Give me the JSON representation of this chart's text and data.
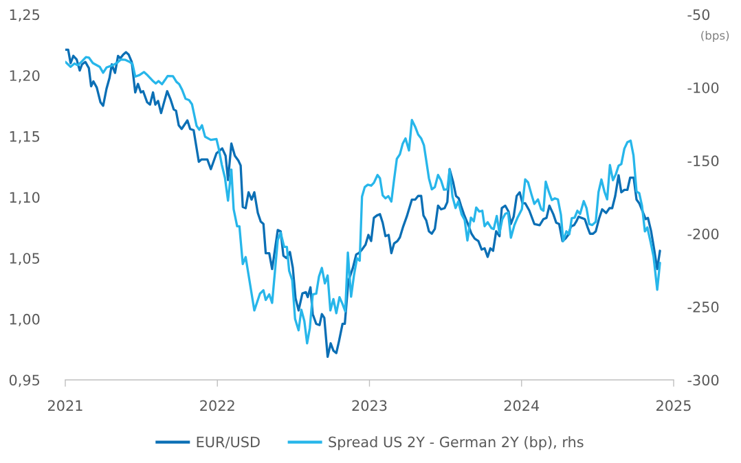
{
  "chart_data": {
    "type": "line",
    "xlim": [
      2021,
      2025
    ],
    "xticks": [
      2021,
      2022,
      2023,
      2024,
      2025
    ],
    "ylim": [
      0.95,
      1.25
    ],
    "yticks": [
      {
        "value": 0.95,
        "label": "0,95"
      },
      {
        "value": 1.0,
        "label": "1,00"
      },
      {
        "value": 1.05,
        "label": "1,05"
      },
      {
        "value": 1.1,
        "label": "1,10"
      },
      {
        "value": 1.15,
        "label": "1,15"
      },
      {
        "value": 1.2,
        "label": "1,20"
      },
      {
        "value": 1.25,
        "label": "1,25"
      }
    ],
    "y2lim": [
      -300,
      -50
    ],
    "y2ticks": [
      -300,
      -250,
      -200,
      -150,
      -100,
      -50
    ],
    "y2label": "(bps)",
    "legend": "bottom",
    "marker": "none",
    "line_style": "solid",
    "series": [
      {
        "name": "EUR/USD",
        "color": "#0b6fb5",
        "x": [
          2021.0,
          2021.019,
          2021.035,
          2021.053,
          2021.075,
          2021.095,
          2021.11,
          2021.132,
          2021.155,
          2021.17,
          2021.185,
          2021.207,
          2021.231,
          2021.249,
          2021.271,
          2021.291,
          2021.306,
          2021.327,
          2021.347,
          2021.362,
          2021.381,
          2021.399,
          2021.417,
          2021.437,
          2021.46,
          2021.478,
          2021.497,
          2021.512,
          2021.538,
          2021.557,
          2021.577,
          2021.592,
          2021.61,
          2021.63,
          2021.652,
          2021.67,
          2021.693,
          2021.713,
          2021.728,
          2021.746,
          2021.765,
          2021.803,
          2021.821,
          2021.844,
          2021.878,
          2021.896,
          2021.934,
          2021.957,
          2021.994,
          2022.032,
          2022.054,
          2022.07,
          2022.092,
          2022.115,
          2022.138,
          2022.153,
          2022.167,
          2022.186,
          2022.205,
          2022.225,
          2022.243,
          2022.266,
          2022.285,
          2022.303,
          2022.318,
          2022.341,
          2022.36,
          2022.397,
          2022.416,
          2022.434,
          2022.454,
          2022.477,
          2022.496,
          2022.514,
          2022.534,
          2022.559,
          2022.582,
          2022.594,
          2022.612,
          2022.627,
          2022.65,
          2022.672,
          2022.687,
          2022.703,
          2022.725,
          2022.745,
          2022.763,
          2022.782,
          2022.8,
          2022.823,
          2022.838,
          2022.861,
          2022.891,
          2022.913,
          2022.929,
          2022.951,
          2022.974,
          2022.993,
          2023.011,
          2023.029,
          2023.049,
          2023.069,
          2023.087,
          2023.105,
          2023.126,
          2023.144,
          2023.162,
          2023.184,
          2023.2,
          2023.222,
          2023.245,
          2023.279,
          2023.301,
          2023.32,
          2023.34,
          2023.355,
          2023.373,
          2023.391,
          2023.41,
          2023.43,
          2023.451,
          2023.471,
          2023.494,
          2023.512,
          2023.527,
          2023.551,
          2023.569,
          2023.587,
          2023.602,
          2023.621,
          2023.644,
          2023.671,
          2023.692,
          2023.716,
          2023.738,
          2023.757,
          2023.777,
          2023.795,
          2023.813,
          2023.833,
          2023.855,
          2023.87,
          2023.893,
          2023.915,
          2023.93,
          2023.948,
          2023.968,
          2023.988,
          2024.006,
          2024.024,
          2024.051,
          2024.084,
          2024.119,
          2024.144,
          2024.164,
          2024.183,
          2024.209,
          2024.228,
          2024.247,
          2024.269,
          2024.289,
          2024.307,
          2024.325,
          2024.345,
          2024.36,
          2024.375,
          2024.394,
          2024.416,
          2024.435,
          2024.45,
          2024.47,
          2024.488,
          2024.511,
          2024.53,
          2024.556,
          2024.578,
          2024.596,
          2024.616,
          2024.638,
          2024.656,
          2024.676,
          2024.696,
          2024.714,
          2024.737,
          2024.756,
          2024.774,
          2024.797,
          2024.816,
          2024.831,
          2024.852,
          2024.872,
          2024.892,
          2024.91
        ],
        "values": [
          1.221,
          1.221,
          1.21,
          1.216,
          1.213,
          1.204,
          1.209,
          1.211,
          1.206,
          1.191,
          1.195,
          1.19,
          1.178,
          1.175,
          1.189,
          1.198,
          1.209,
          1.202,
          1.216,
          1.214,
          1.217,
          1.219,
          1.217,
          1.211,
          1.186,
          1.193,
          1.186,
          1.187,
          1.178,
          1.176,
          1.186,
          1.176,
          1.179,
          1.169,
          1.179,
          1.187,
          1.18,
          1.172,
          1.171,
          1.159,
          1.156,
          1.163,
          1.156,
          1.155,
          1.129,
          1.131,
          1.131,
          1.123,
          1.136,
          1.14,
          1.134,
          1.114,
          1.144,
          1.134,
          1.13,
          1.126,
          1.092,
          1.091,
          1.104,
          1.098,
          1.104,
          1.087,
          1.08,
          1.078,
          1.054,
          1.054,
          1.041,
          1.073,
          1.072,
          1.052,
          1.05,
          1.055,
          1.042,
          1.017,
          1.007,
          1.021,
          1.022,
          1.018,
          1.026,
          1.004,
          0.996,
          0.995,
          1.004,
          1.001,
          0.969,
          0.98,
          0.974,
          0.972,
          0.982,
          0.996,
          0.996,
          1.031,
          1.042,
          1.053,
          1.054,
          1.057,
          1.061,
          1.069,
          1.064,
          1.083,
          1.085,
          1.086,
          1.079,
          1.068,
          1.069,
          1.054,
          1.062,
          1.064,
          1.067,
          1.076,
          1.084,
          1.098,
          1.098,
          1.101,
          1.101,
          1.085,
          1.081,
          1.072,
          1.07,
          1.074,
          1.093,
          1.09,
          1.091,
          1.096,
          1.123,
          1.112,
          1.101,
          1.099,
          1.093,
          1.086,
          1.079,
          1.07,
          1.066,
          1.064,
          1.057,
          1.058,
          1.051,
          1.058,
          1.056,
          1.072,
          1.068,
          1.091,
          1.093,
          1.088,
          1.078,
          1.084,
          1.101,
          1.104,
          1.095,
          1.095,
          1.089,
          1.078,
          1.077,
          1.082,
          1.083,
          1.093,
          1.086,
          1.079,
          1.078,
          1.064,
          1.066,
          1.069,
          1.076,
          1.077,
          1.08,
          1.084,
          1.083,
          1.082,
          1.075,
          1.07,
          1.07,
          1.072,
          1.083,
          1.09,
          1.087,
          1.091,
          1.091,
          1.101,
          1.118,
          1.104,
          1.106,
          1.106,
          1.116,
          1.116,
          1.098,
          1.095,
          1.088,
          1.082,
          1.083,
          1.072,
          1.057,
          1.041,
          1.056
        ]
      },
      {
        "name": "Spread US 2Y - German 2Y (bp), rhs",
        "color": "#27b6ea",
        "axis": "y2",
        "x": [
          2021.0,
          2021.035,
          2021.06,
          2021.083,
          2021.11,
          2021.136,
          2021.155,
          2021.181,
          2021.226,
          2021.249,
          2021.271,
          2021.312,
          2021.339,
          2021.366,
          2021.396,
          2021.422,
          2021.442,
          2021.46,
          2021.489,
          2021.517,
          2021.542,
          2021.573,
          2021.595,
          2021.613,
          2021.636,
          2021.655,
          2021.673,
          2021.708,
          2021.731,
          2021.749,
          2021.768,
          2021.791,
          2021.814,
          2021.833,
          2021.863,
          2021.881,
          2021.899,
          2021.919,
          2021.957,
          2021.994,
          2022.009,
          2022.029,
          2022.05,
          2022.07,
          2022.092,
          2022.107,
          2022.13,
          2022.145,
          2022.167,
          2022.186,
          2022.213,
          2022.243,
          2022.28,
          2022.303,
          2022.318,
          2022.341,
          2022.36,
          2022.397,
          2022.416,
          2022.439,
          2022.457,
          2022.472,
          2022.492,
          2022.511,
          2022.534,
          2022.552,
          2022.572,
          2022.59,
          2022.608,
          2022.627,
          2022.65,
          2022.668,
          2022.687,
          2022.707,
          2022.725,
          2022.743,
          2022.763,
          2022.782,
          2022.803,
          2022.823,
          2022.841,
          2022.858,
          2022.879,
          2022.898,
          2022.918,
          2022.936,
          2022.951,
          2022.969,
          2022.989,
          2023.011,
          2023.029,
          2023.053,
          2023.069,
          2023.087,
          2023.105,
          2023.124,
          2023.144,
          2023.162,
          2023.18,
          2023.2,
          2023.219,
          2023.237,
          2023.26,
          2023.279,
          2023.301,
          2023.32,
          2023.34,
          2023.358,
          2023.373,
          2023.391,
          2023.41,
          2023.43,
          2023.451,
          2023.471,
          2023.49,
          2023.512,
          2023.527,
          2023.546,
          2023.566,
          2023.584,
          2023.606,
          2023.626,
          2023.644,
          2023.667,
          2023.686,
          2023.702,
          2023.722,
          2023.742,
          2023.757,
          2023.777,
          2023.802,
          2023.817,
          2023.837,
          2023.855,
          2023.873,
          2023.893,
          2023.912,
          2023.93,
          2023.953,
          2023.975,
          2024.002,
          2024.024,
          2024.043,
          2024.066,
          2024.084,
          2024.108,
          2024.129,
          2024.144,
          2024.159,
          2024.179,
          2024.199,
          2024.219,
          2024.239,
          2024.259,
          2024.274,
          2024.295,
          2024.314,
          2024.33,
          2024.349,
          2024.367,
          2024.385,
          2024.409,
          2024.427,
          2024.445,
          2024.465,
          2024.488,
          2024.506,
          2024.525,
          2024.545,
          2024.563,
          2024.581,
          2024.601,
          2024.62,
          2024.638,
          2024.656,
          2024.676,
          2024.696,
          2024.717,
          2024.736,
          2024.756,
          2024.774,
          2024.792,
          2024.811,
          2024.827,
          2024.849,
          2024.868,
          2024.892,
          2024.91
        ],
        "values": [
          -82.4,
          -85.8,
          -83.6,
          -84.7,
          -82.0,
          -79.2,
          -79.5,
          -83.2,
          -85.8,
          -89.9,
          -86.3,
          -84.7,
          -83.2,
          -80.8,
          -81.1,
          -82.4,
          -83.9,
          -92.5,
          -91.4,
          -89.4,
          -91.7,
          -95.2,
          -97.2,
          -95.6,
          -97.7,
          -94.9,
          -92.1,
          -92.2,
          -96.1,
          -97.7,
          -101.5,
          -107.7,
          -108.6,
          -111.4,
          -126.1,
          -128.9,
          -125.8,
          -133.6,
          -135.8,
          -135.2,
          -141.8,
          -152.7,
          -161.8,
          -177.4,
          -156.1,
          -183.2,
          -194.9,
          -194.9,
          -220.7,
          -216.0,
          -233.3,
          -252.5,
          -241.0,
          -238.7,
          -245.3,
          -241.5,
          -247.3,
          -204.3,
          -199.3,
          -209.0,
          -209.0,
          -225.4,
          -231.7,
          -258.3,
          -266.1,
          -252.0,
          -259.8,
          -275.0,
          -264.5,
          -241.5,
          -241.0,
          -229.3,
          -223.4,
          -234.0,
          -228.6,
          -252.5,
          -244.7,
          -254.4,
          -243.4,
          -248.1,
          -253.1,
          -212.9,
          -243.1,
          -228.6,
          -216.8,
          -218.4,
          -174.6,
          -168.1,
          -166.5,
          -167.1,
          -165.2,
          -159.8,
          -162.1,
          -173.8,
          -175.8,
          -174.3,
          -178.0,
          -162.9,
          -148.8,
          -145.7,
          -138.3,
          -134.8,
          -143.0,
          -122.2,
          -126.9,
          -132.1,
          -134.8,
          -139.4,
          -149.6,
          -162.1,
          -169.6,
          -168.1,
          -159.8,
          -163.6,
          -169.9,
          -169.6,
          -156.1,
          -174.6,
          -182.4,
          -178.0,
          -186.8,
          -190.6,
          -204.6,
          -189.0,
          -191.5,
          -182.1,
          -184.8,
          -184.3,
          -194.9,
          -192.1,
          -196.2,
          -196.8,
          -187.9,
          -199.6,
          -190.2,
          -186.4,
          -185.6,
          -202.8,
          -194.1,
          -188.7,
          -183.2,
          -162.9,
          -164.9,
          -173.4,
          -179.6,
          -176.5,
          -183.2,
          -184.3,
          -164.4,
          -171.2,
          -177.0,
          -175.8,
          -176.5,
          -187.1,
          -205.1,
          -198.4,
          -200.4,
          -189.4,
          -189.0,
          -184.3,
          -186.4,
          -177.7,
          -182.4,
          -193.4,
          -194.1,
          -191.8,
          -171.5,
          -162.9,
          -171.2,
          -176.5,
          -153.0,
          -163.4,
          -159.3,
          -153.5,
          -152.4,
          -141.8,
          -137.4,
          -136.3,
          -146.5,
          -171.2,
          -172.3,
          -180.9,
          -198.4,
          -195.7,
          -205.9,
          -215.6,
          -238.4,
          -219.9
        ]
      }
    ]
  }
}
